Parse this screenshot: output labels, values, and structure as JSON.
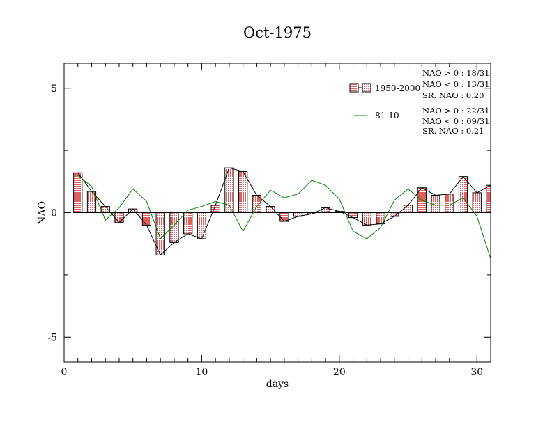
{
  "chart_data": {
    "type": "bar",
    "title": "Oct-1975",
    "xlabel": "days",
    "ylabel": "NAO",
    "xlim": [
      0,
      31
    ],
    "ylim": [
      -6,
      6
    ],
    "xticks": [
      0,
      10,
      20,
      30
    ],
    "yticks": [
      -5,
      0,
      5
    ],
    "grid": false,
    "legend_position": "top-right",
    "x": [
      1,
      2,
      3,
      4,
      5,
      6,
      7,
      8,
      9,
      10,
      11,
      12,
      13,
      14,
      15,
      16,
      17,
      18,
      19,
      20,
      21,
      22,
      23,
      24,
      25,
      26,
      27,
      28,
      29,
      30,
      31
    ],
    "series": [
      {
        "name": "1950-2000",
        "style": "bar-with-line",
        "color": "#f08080",
        "line_color": "#000000",
        "values": [
          1.6,
          0.85,
          0.25,
          -0.4,
          0.15,
          -0.5,
          -1.7,
          -1.2,
          -0.85,
          -1.05,
          0.3,
          1.8,
          1.65,
          0.7,
          0.25,
          -0.35,
          -0.15,
          -0.05,
          0.2,
          0.05,
          -0.2,
          -0.5,
          -0.45,
          -0.15,
          0.3,
          1.0,
          0.7,
          0.75,
          1.45,
          0.8,
          1.1
        ]
      },
      {
        "name": "81-10",
        "style": "line",
        "color": "#008000",
        "values": [
          1.5,
          1.05,
          -0.3,
          0.2,
          0.95,
          0.45,
          -1.05,
          -0.5,
          0.1,
          0.25,
          0.45,
          0.3,
          -0.75,
          0.25,
          0.9,
          0.6,
          0.75,
          1.3,
          1.1,
          0.55,
          -0.75,
          -1.05,
          -0.6,
          0.5,
          0.95,
          0.5,
          0.3,
          0.3,
          0.6,
          -0.15,
          -1.85
        ]
      }
    ],
    "stats": [
      [
        "NAO > 0 : 18/31",
        "NAO < 0 : 13/31",
        "SR. NAO :  0.20"
      ],
      [
        "NAO > 0 : 22/31",
        "NAO < 0 : 09/31",
        "SR. NAO :  0.21"
      ]
    ]
  }
}
